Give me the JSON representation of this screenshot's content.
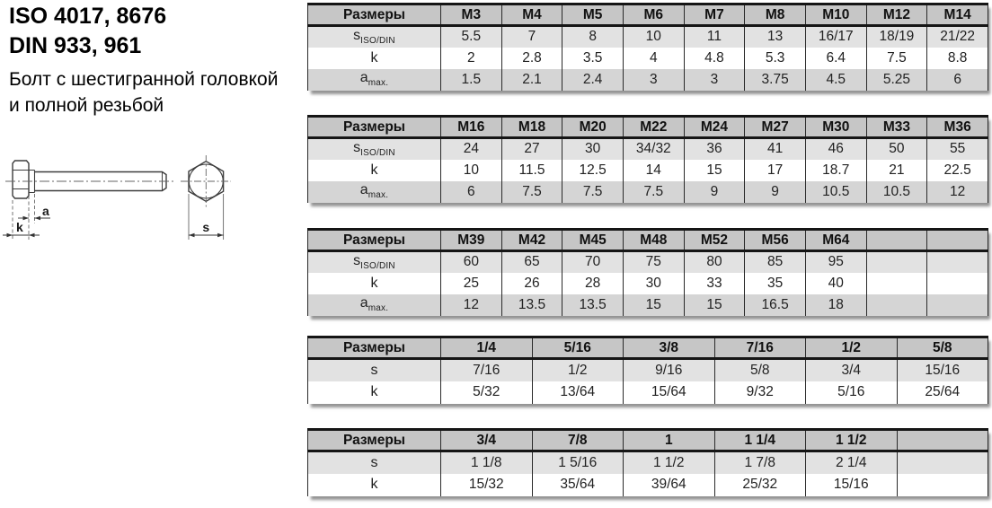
{
  "header": {
    "iso_line": "ISO 4017, 8676",
    "din_line": "DIN 933, 961",
    "desc_line1": "Болт с шестигранной головкой",
    "desc_line2": "и полной резьбой"
  },
  "diagram": {
    "dim_a": "a",
    "dim_k": "k",
    "dim_s": "s"
  },
  "colors": {
    "table_header_bg": "#c6c6c6",
    "row_light_bg": "#e2e2e2",
    "row_white_bg": "#ffffff",
    "row_dark_bg": "#d5d5d5",
    "border": "#2a2a2a"
  },
  "tables": [
    {
      "header_label": "Размеры",
      "columns": [
        "M3",
        "M4",
        "M5",
        "M6",
        "M7",
        "M8",
        "M10",
        "M12",
        "M14"
      ],
      "rows": [
        {
          "label": "s",
          "sub": "ISO/DIN",
          "values": [
            "5.5",
            "7",
            "8",
            "10",
            "11",
            "13",
            "16/17",
            "18/19",
            "21/22"
          ]
        },
        {
          "label": "k",
          "sub": "",
          "values": [
            "2",
            "2.8",
            "3.5",
            "4",
            "4.8",
            "5.3",
            "6.4",
            "7.5",
            "8.8"
          ]
        },
        {
          "label": "a",
          "sub": "max.",
          "values": [
            "1.5",
            "2.1",
            "2.4",
            "3",
            "3",
            "3.75",
            "4.5",
            "5.25",
            "6"
          ]
        }
      ]
    },
    {
      "header_label": "Размеры",
      "columns": [
        "M16",
        "M18",
        "M20",
        "M22",
        "M24",
        "M27",
        "M30",
        "M33",
        "M36"
      ],
      "rows": [
        {
          "label": "s",
          "sub": "ISO/DIN",
          "values": [
            "24",
            "27",
            "30",
            "34/32",
            "36",
            "41",
            "46",
            "50",
            "55"
          ]
        },
        {
          "label": "k",
          "sub": "",
          "values": [
            "10",
            "11.5",
            "12.5",
            "14",
            "15",
            "17",
            "18.7",
            "21",
            "22.5"
          ]
        },
        {
          "label": "a",
          "sub": "max.",
          "values": [
            "6",
            "7.5",
            "7.5",
            "7.5",
            "9",
            "9",
            "10.5",
            "10.5",
            "12"
          ]
        }
      ]
    },
    {
      "header_label": "Размеры",
      "columns": [
        "M39",
        "M42",
        "M45",
        "M48",
        "M52",
        "M56",
        "M64",
        "",
        ""
      ],
      "rows": [
        {
          "label": "s",
          "sub": "ISO/DIN",
          "values": [
            "60",
            "65",
            "70",
            "75",
            "80",
            "85",
            "95",
            "",
            ""
          ]
        },
        {
          "label": "k",
          "sub": "",
          "values": [
            "25",
            "26",
            "28",
            "30",
            "33",
            "35",
            "40",
            "",
            ""
          ]
        },
        {
          "label": "a",
          "sub": "max.",
          "values": [
            "12",
            "13.5",
            "13.5",
            "15",
            "15",
            "16.5",
            "18",
            "",
            ""
          ]
        }
      ]
    },
    {
      "header_label": "Размеры",
      "columns": [
        "1/4",
        "5/16",
        "3/8",
        "7/16",
        "1/2",
        "5/8"
      ],
      "rows": [
        {
          "label": "s",
          "sub": "",
          "values": [
            "7/16",
            "1/2",
            "9/16",
            "5/8",
            "3/4",
            "15/16"
          ]
        },
        {
          "label": "k",
          "sub": "",
          "values": [
            "5/32",
            "13/64",
            "15/64",
            "9/32",
            "5/16",
            "25/64"
          ]
        }
      ]
    },
    {
      "header_label": "Размеры",
      "columns": [
        "3/4",
        "7/8",
        "1",
        "1 1/4",
        "1 1/2",
        ""
      ],
      "rows": [
        {
          "label": "s",
          "sub": "",
          "values": [
            "1 1/8",
            "1 5/16",
            "1 1/2",
            "1 7/8",
            "2 1/4",
            ""
          ]
        },
        {
          "label": "k",
          "sub": "",
          "values": [
            "15/32",
            "35/64",
            "39/64",
            "25/32",
            "15/16",
            ""
          ]
        }
      ]
    }
  ]
}
